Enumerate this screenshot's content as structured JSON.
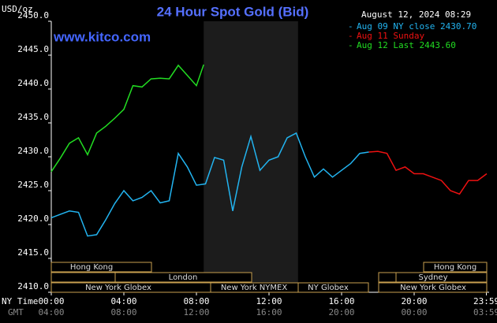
{
  "chart_data": {
    "type": "line",
    "title": "24 Hour Spot Gold (Bid)",
    "timestamp": "August 12, 2024 08:29",
    "watermark": "www.kitco.com",
    "y_unit": "USD/oz",
    "x_axis_label": "NY Time",
    "x2_axis_label": "GMT",
    "xlim": [
      0,
      24
    ],
    "xticks": [
      {
        "value": 0,
        "label": "00:00"
      },
      {
        "value": 4,
        "label": "04:00"
      },
      {
        "value": 8,
        "label": "08:00"
      },
      {
        "value": 12,
        "label": "12:00"
      },
      {
        "value": 16,
        "label": "16:00"
      },
      {
        "value": 20,
        "label": "20:00"
      },
      {
        "value": 23.98,
        "label": "23:59"
      }
    ],
    "x2tick_labels": [
      "04:00",
      "08:00",
      "12:00",
      "16:00",
      "20:00",
      "00:00",
      "03:59"
    ],
    "ylim": [
      2410,
      2450
    ],
    "yticks": [
      {
        "value": 2410,
        "label": "2410.0"
      },
      {
        "value": 2415,
        "label": "2415.0"
      },
      {
        "value": 2420,
        "label": "2420.0"
      },
      {
        "value": 2425,
        "label": "2425.0"
      },
      {
        "value": 2430,
        "label": "2430.0"
      },
      {
        "value": 2435,
        "label": "2435.0"
      },
      {
        "value": 2440,
        "label": "2440.0"
      },
      {
        "value": 2445,
        "label": "2445.0"
      },
      {
        "value": 2450,
        "label": "2450.0"
      }
    ],
    "highlight_x": [
      8.4,
      13.6
    ],
    "sessions": [
      "Hong Kong",
      "London",
      "New York Globex",
      "New York NYMEX",
      "NY Globex",
      "Hong Kong",
      "Sydney",
      "New York Globex"
    ],
    "series": [
      {
        "name": "Aug 09 NY close 2430.70",
        "color": "#22b4f0",
        "x": [
          0,
          0.5,
          1,
          1.5,
          2,
          2.5,
          3,
          3.5,
          4,
          4.5,
          5,
          5.5,
          6,
          6.5,
          7,
          7.5,
          8,
          8.5,
          9,
          9.5,
          10,
          10.5,
          11,
          11.5,
          12,
          12.5,
          13,
          13.5,
          14,
          14.5,
          15,
          15.5,
          16,
          16.5,
          17,
          17.5
        ],
        "values": [
          2421,
          2421.5,
          2422,
          2421.8,
          2418.3,
          2418.5,
          2420.7,
          2423.1,
          2425,
          2423.5,
          2424,
          2425,
          2423.2,
          2423.5,
          2430.5,
          2428.5,
          2425.8,
          2426,
          2429.9,
          2429.5,
          2422,
          2428.5,
          2433,
          2428,
          2429.5,
          2430,
          2432.8,
          2433.5,
          2430,
          2427,
          2428.2,
          2427,
          2428,
          2429,
          2430.5,
          2430.7
        ]
      },
      {
        "name": "Aug 11 Sunday",
        "color": "#ee1111",
        "x": [
          17.5,
          18,
          18.5,
          19,
          19.5,
          20,
          20.5,
          21,
          21.5,
          22,
          22.5,
          23,
          23.5,
          24
        ],
        "values": [
          2430.7,
          2430.8,
          2430.5,
          2428,
          2428.5,
          2427.5,
          2427.5,
          2427,
          2426.5,
          2425,
          2424.5,
          2426.5,
          2426.5,
          2427.5
        ]
      },
      {
        "name": "Aug 12 Last 2443.60",
        "color": "#22dd22",
        "x": [
          0,
          0.5,
          1,
          1.5,
          2,
          2.5,
          3,
          3.5,
          4,
          4.5,
          5,
          5.5,
          6,
          6.5,
          7,
          7.5,
          8,
          8.4
        ],
        "values": [
          2427.8,
          2429.8,
          2432,
          2432.8,
          2430.3,
          2433.5,
          2434.5,
          2435.7,
          2437,
          2440.5,
          2440.3,
          2441.5,
          2441.6,
          2441.5,
          2443.5,
          2442,
          2440.5,
          2443.6
        ]
      }
    ]
  }
}
